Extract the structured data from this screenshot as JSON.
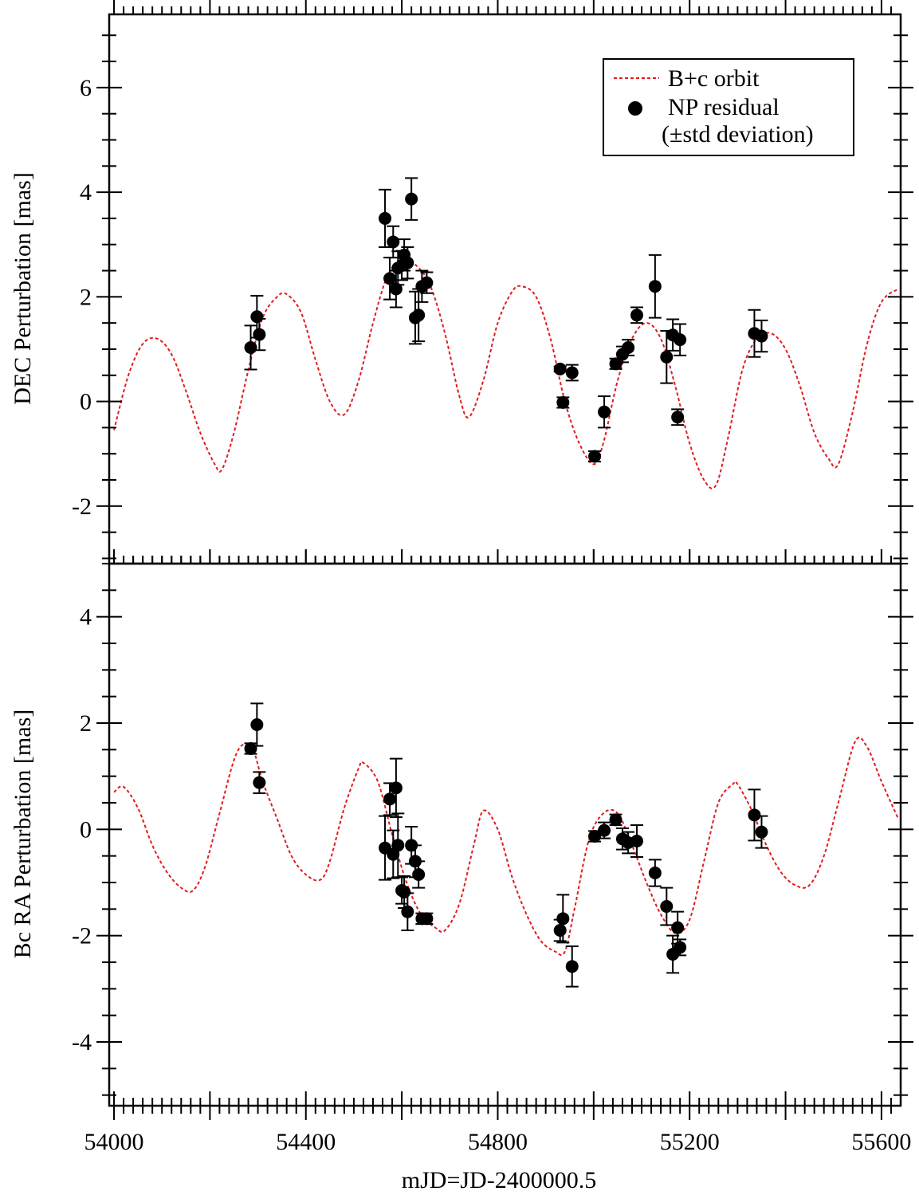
{
  "chart_data": [
    {
      "type": "scatter",
      "panel": "top",
      "ylabel": "DEC Perturbation [mas]",
      "xlim": [
        53990,
        55640
      ],
      "ylim": [
        -3.1,
        7.4
      ],
      "yticks": [
        -2,
        0,
        2,
        4,
        6
      ],
      "legend": {
        "position": "top-right",
        "entries": [
          "B+c orbit",
          "NP residual",
          "(±std deviation)"
        ]
      },
      "orbit": {
        "name": "B+c orbit",
        "color": "#e31a1c",
        "x": [
          54000,
          54030,
          54060,
          54090,
          54120,
          54150,
          54180,
          54210,
          54225,
          54250,
          54280,
          54310,
          54340,
          54360,
          54390,
          54420,
          54450,
          54480,
          54510,
          54540,
          54570,
          54600,
          54630,
          54660,
          54690,
          54720,
          54740,
          54770,
          54800,
          54830,
          54850,
          54880,
          54910,
          54940,
          54970,
          55000,
          55020,
          55050,
          55080,
          55110,
          55140,
          55170,
          55200,
          55230,
          55255,
          55280,
          55310,
          55340,
          55370,
          55400,
          55430,
          55460,
          55490,
          55510,
          55540,
          55570,
          55600,
          55635
        ],
        "y": [
          -0.55,
          0.5,
          1.1,
          1.2,
          0.9,
          0.2,
          -0.6,
          -1.2,
          -1.3,
          -0.6,
          0.6,
          1.6,
          2.0,
          2.05,
          1.7,
          0.8,
          0.0,
          -0.25,
          0.4,
          1.5,
          2.4,
          2.7,
          2.6,
          2.2,
          1.3,
          0.1,
          -0.3,
          0.4,
          1.5,
          2.1,
          2.2,
          2.0,
          1.2,
          0.0,
          -0.8,
          -1.2,
          -0.8,
          0.4,
          1.2,
          1.5,
          1.2,
          0.3,
          -0.8,
          -1.5,
          -1.6,
          -0.7,
          0.6,
          1.2,
          1.3,
          1.0,
          0.3,
          -0.6,
          -1.1,
          -1.2,
          -0.2,
          1.1,
          1.9,
          2.15
        ]
      },
      "series": [
        {
          "name": "NP residual",
          "x": [
            54285,
            54298,
            54303,
            54565,
            54575,
            54582,
            54588,
            54592,
            54600,
            54605,
            54612,
            54620,
            54628,
            54635,
            54642,
            54652,
            54930,
            54936,
            54955,
            55002,
            55022,
            55046,
            55060,
            55072,
            55090,
            55128,
            55152,
            55165,
            55175,
            55180,
            55335,
            55350
          ],
          "y": [
            1.03,
            1.62,
            1.28,
            3.5,
            2.35,
            3.05,
            2.15,
            2.55,
            2.6,
            2.8,
            2.65,
            3.87,
            1.6,
            1.65,
            2.2,
            2.27,
            0.62,
            -0.02,
            0.55,
            -1.05,
            -0.2,
            0.72,
            0.9,
            1.03,
            1.65,
            2.2,
            0.85,
            1.27,
            -0.3,
            1.18,
            1.3,
            1.25
          ],
          "err": [
            0.42,
            0.4,
            0.3,
            0.55,
            0.4,
            0.3,
            0.35,
            0.32,
            0.28,
            0.3,
            0.3,
            0.4,
            0.5,
            0.5,
            0.3,
            0.2,
            0.05,
            0.1,
            0.15,
            0.1,
            0.3,
            0.1,
            0.15,
            0.15,
            0.15,
            0.6,
            0.5,
            0.3,
            0.15,
            0.3,
            0.45,
            0.3
          ]
        }
      ]
    },
    {
      "type": "scatter",
      "panel": "bottom",
      "ylabel": "Bc RA Perturbation [mas]",
      "xlabel": "mJD=JD-2400000.5",
      "xlim": [
        53990,
        55640
      ],
      "ylim": [
        -5.2,
        5.0
      ],
      "yticks": [
        -4,
        -2,
        0,
        2,
        4
      ],
      "xticks": [
        54000,
        54400,
        54800,
        55200,
        55600
      ],
      "orbit": {
        "name": "B+c orbit",
        "color": "#e31a1c",
        "x": [
          54000,
          54020,
          54050,
          54080,
          54110,
          54140,
          54165,
          54190,
          54220,
          54250,
          54270,
          54290,
          54310,
          54340,
          54370,
          54400,
          54430,
          54450,
          54480,
          54510,
          54520,
          54550,
          54580,
          54610,
          54640,
          54670,
          54690,
          54720,
          54750,
          54770,
          54800,
          54830,
          54860,
          54890,
          54920,
          54940,
          54960,
          54990,
          55020,
          55050,
          55080,
          55110,
          55140,
          55170,
          55200,
          55230,
          55260,
          55290,
          55300,
          55330,
          55360,
          55390,
          55420,
          55450,
          55480,
          55510,
          55545,
          55570,
          55600,
          55635
        ],
        "y": [
          0.7,
          0.8,
          0.4,
          -0.3,
          -0.8,
          -1.1,
          -1.15,
          -0.7,
          0.3,
          1.3,
          1.6,
          1.5,
          0.9,
          0.2,
          -0.5,
          -0.85,
          -0.95,
          -0.6,
          0.4,
          1.15,
          1.25,
          0.9,
          -0.1,
          -1.0,
          -1.6,
          -1.85,
          -1.9,
          -1.4,
          -0.3,
          0.35,
          0.0,
          -0.9,
          -1.6,
          -2.1,
          -2.3,
          -2.3,
          -1.5,
          -0.2,
          0.3,
          0.3,
          -0.3,
          -1.0,
          -1.6,
          -1.95,
          -1.7,
          -0.6,
          0.5,
          0.85,
          0.85,
          0.35,
          -0.3,
          -0.8,
          -1.05,
          -1.05,
          -0.5,
          0.5,
          1.65,
          1.55,
          0.9,
          0.2
        ]
      },
      "series": [
        {
          "name": "NP residual",
          "x": [
            54285,
            54298,
            54303,
            54565,
            54575,
            54582,
            54588,
            54592,
            54600,
            54605,
            54612,
            54620,
            54628,
            54635,
            54642,
            54652,
            54930,
            54936,
            54955,
            55002,
            55022,
            55046,
            55060,
            55072,
            55090,
            55128,
            55152,
            55165,
            55175,
            55180,
            55335,
            55350
          ],
          "y": [
            1.52,
            1.97,
            0.88,
            -0.35,
            0.57,
            -0.47,
            0.78,
            -0.3,
            -1.15,
            -1.18,
            -1.55,
            -0.3,
            -0.6,
            -0.85,
            -1.68,
            -1.68,
            -1.9,
            -1.68,
            -2.58,
            -0.13,
            -0.02,
            0.18,
            -0.18,
            -0.25,
            -0.22,
            -0.82,
            -1.45,
            -2.35,
            -1.85,
            -2.22,
            0.27,
            -0.05
          ],
          "err": [
            0.1,
            0.4,
            0.2,
            0.6,
            0.3,
            0.45,
            0.55,
            0.6,
            0.25,
            0.3,
            0.35,
            0.35,
            0.3,
            0.25,
            0.1,
            0.1,
            0.2,
            0.45,
            0.38,
            0.1,
            0.15,
            0.1,
            0.2,
            0.2,
            0.3,
            0.25,
            0.35,
            0.35,
            0.3,
            0.15,
            0.48,
            0.3
          ]
        }
      ]
    }
  ]
}
